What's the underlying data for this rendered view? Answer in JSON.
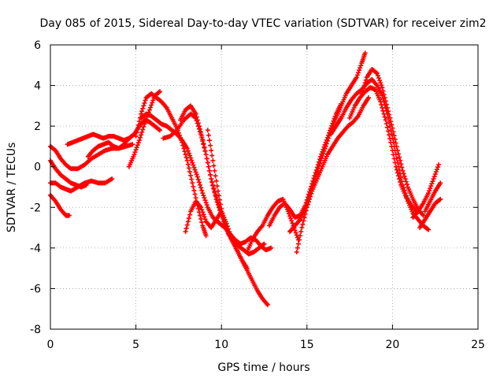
{
  "chart_data": {
    "type": "scatter",
    "title": "Day 085 of 2015, Sidereal Day-to-day VTEC variation (SDTVAR) for receiver zim2",
    "xlabel": "GPS time / hours",
    "ylabel": "SDTVAR / TECUs",
    "xlim": [
      0,
      25
    ],
    "ylim": [
      -8,
      6
    ],
    "xticks": [
      0,
      5,
      10,
      15,
      20,
      25
    ],
    "yticks": [
      -8,
      -6,
      -4,
      -2,
      0,
      2,
      4,
      6
    ],
    "grid": true,
    "marker": "plus",
    "color": "#ff0000",
    "tracks": [
      {
        "x": [
          0.0,
          0.3,
          0.6,
          0.9,
          1.1
        ],
        "y": [
          -1.4,
          -1.7,
          -2.1,
          -2.4,
          -2.4
        ]
      },
      {
        "x": [
          0.0,
          0.3,
          0.6,
          0.9,
          1.2,
          1.6,
          2.0,
          2.4,
          2.8,
          3.2,
          3.6
        ],
        "y": [
          -0.8,
          -0.8,
          -1.0,
          -1.1,
          -1.2,
          -1.0,
          -0.8,
          -0.7,
          -0.8,
          -0.8,
          -0.6
        ]
      },
      {
        "x": [
          0.0,
          0.3,
          0.6,
          0.9,
          1.2,
          1.5,
          1.8,
          2.1
        ],
        "y": [
          0.3,
          -0.1,
          -0.4,
          -0.6,
          -0.8,
          -0.9,
          -1.0,
          -0.9
        ]
      },
      {
        "x": [
          0.0,
          0.3,
          0.6,
          0.9,
          1.2,
          1.6,
          2.0,
          2.4,
          2.8,
          3.2,
          3.6,
          4.0,
          4.4,
          4.8
        ],
        "y": [
          1.0,
          0.8,
          0.4,
          0.1,
          -0.1,
          -0.1,
          0.1,
          0.4,
          0.6,
          0.8,
          0.9,
          0.9,
          1.0,
          1.1
        ]
      },
      {
        "x": [
          1.0,
          1.3,
          1.6,
          1.9,
          2.2,
          2.5,
          2.8,
          3.1,
          3.4,
          3.7,
          4.0,
          4.3,
          4.6,
          4.9
        ],
        "y": [
          1.1,
          1.2,
          1.3,
          1.4,
          1.5,
          1.6,
          1.5,
          1.4,
          1.5,
          1.5,
          1.4,
          1.3,
          1.4,
          1.6
        ]
      },
      {
        "x": [
          2.2,
          2.5,
          2.8,
          3.1,
          3.4,
          3.7,
          4.0,
          4.3,
          4.6,
          4.9,
          5.2,
          5.5,
          5.8,
          6.1,
          6.4
        ],
        "y": [
          0.5,
          0.8,
          1.0,
          1.1,
          1.2,
          1.0,
          0.9,
          1.1,
          1.4,
          1.6,
          2.0,
          2.3,
          2.2,
          2.0,
          1.8
        ]
      },
      {
        "x": [
          4.6,
          4.9,
          5.2,
          5.5,
          5.8,
          6.1,
          6.4
        ],
        "y": [
          0.0,
          0.6,
          1.3,
          2.1,
          2.8,
          3.5,
          3.7
        ]
      },
      {
        "x": [
          5.0,
          5.3,
          5.6,
          5.9,
          6.2,
          6.5,
          6.8,
          7.1,
          7.4,
          7.7,
          8.0,
          8.3,
          8.6,
          8.9,
          9.1
        ],
        "y": [
          1.5,
          2.6,
          3.4,
          3.6,
          3.4,
          3.2,
          2.9,
          2.4,
          1.9,
          1.2,
          0.3,
          -0.8,
          -1.9,
          -2.9,
          -3.4
        ]
      },
      {
        "x": [
          5.3,
          5.6,
          5.9,
          6.2,
          6.5,
          6.8,
          7.1,
          7.4,
          7.7,
          8.0,
          8.3,
          8.6,
          8.9,
          9.2,
          9.5,
          9.8
        ],
        "y": [
          2.4,
          2.6,
          2.5,
          2.3,
          2.1,
          2.0,
          1.8,
          1.6,
          1.3,
          0.9,
          0.2,
          -0.5,
          -1.3,
          -2.0,
          -2.5,
          -2.7
        ]
      },
      {
        "x": [
          6.6,
          7.0,
          7.4,
          7.8,
          8.2,
          8.5,
          8.8,
          9.1,
          9.4,
          9.7,
          10.0
        ],
        "y": [
          1.4,
          1.5,
          1.8,
          2.3,
          2.6,
          2.4,
          1.6,
          0.6,
          -0.6,
          -1.6,
          -2.4
        ]
      },
      {
        "x": [
          7.6,
          7.9,
          8.2,
          8.5,
          8.8,
          9.1,
          9.4,
          9.7,
          10.0,
          10.3,
          10.6,
          10.9,
          11.2,
          11.5,
          11.8,
          12.1,
          12.4,
          12.7
        ],
        "y": [
          2.3,
          2.8,
          3.0,
          2.6,
          1.7,
          0.6,
          -0.6,
          -1.5,
          -2.3,
          -3.1,
          -3.6,
          -4.1,
          -4.6,
          -5.1,
          -5.6,
          -6.1,
          -6.5,
          -6.8
        ]
      },
      {
        "x": [
          7.9,
          8.2,
          8.5,
          8.8,
          9.1,
          9.4,
          9.7,
          10.0,
          10.3,
          10.6,
          10.9,
          11.2,
          11.5
        ],
        "y": [
          -3.2,
          -2.2,
          -1.7,
          -2.0,
          -2.7,
          -3.0,
          -2.6,
          -2.2,
          -2.8,
          -3.6,
          -4.1,
          -4.6,
          -5.0
        ]
      },
      {
        "x": [
          9.2,
          9.5,
          9.8,
          10.1,
          10.4,
          10.7,
          11.0,
          11.3,
          11.6,
          11.9,
          12.2,
          12.5
        ],
        "y": [
          1.8,
          0.3,
          -1.2,
          -2.5,
          -3.3,
          -3.7,
          -3.9,
          -4.1,
          -4.3,
          -4.2,
          -4.0,
          -3.8
        ]
      },
      {
        "x": [
          9.6,
          9.9,
          10.2,
          10.5,
          10.8,
          11.1,
          11.4,
          11.7,
          12.0,
          12.3,
          12.6,
          12.9
        ],
        "y": [
          -2.6,
          -2.8,
          -3.0,
          -3.3,
          -3.6,
          -3.8,
          -3.7,
          -3.5,
          -3.6,
          -3.9,
          -4.1,
          -4.0
        ]
      },
      {
        "x": [
          11.5,
          11.8,
          12.1,
          12.4,
          12.7,
          13.0,
          13.3,
          13.6,
          13.9,
          14.2,
          14.5
        ],
        "y": [
          -4.2,
          -3.6,
          -3.2,
          -2.9,
          -2.4,
          -2.0,
          -1.7,
          -1.6,
          -2.2,
          -2.9,
          -3.6
        ]
      },
      {
        "x": [
          12.8,
          13.1,
          13.4,
          13.7,
          14.0,
          14.3,
          14.6,
          14.9,
          15.2,
          15.5,
          15.8,
          16.1,
          16.4,
          16.7,
          17.0
        ],
        "y": [
          -2.9,
          -2.4,
          -2.0,
          -1.8,
          -2.1,
          -2.5,
          -2.4,
          -1.9,
          -1.1,
          -0.3,
          0.5,
          1.2,
          1.9,
          2.6,
          3.1
        ]
      },
      {
        "x": [
          14.0,
          14.3,
          14.6,
          14.9,
          15.2,
          15.5,
          15.8,
          16.1,
          16.4,
          16.7,
          17.0,
          17.3,
          17.6,
          17.9,
          18.2,
          18.4
        ],
        "y": [
          -3.2,
          -2.9,
          -2.6,
          -2.1,
          -1.3,
          -0.5,
          0.3,
          1.0,
          1.8,
          2.4,
          3.0,
          3.6,
          4.0,
          4.4,
          5.1,
          5.6
        ]
      },
      {
        "x": [
          14.4,
          14.7,
          15.0,
          15.3,
          15.6,
          15.9,
          16.2,
          16.5,
          16.8,
          17.1,
          17.4,
          17.7,
          18.0,
          18.3,
          18.6
        ],
        "y": [
          -4.2,
          -3.0,
          -2.0,
          -1.2,
          -0.6,
          0.0,
          0.6,
          1.0,
          1.4,
          1.7,
          2.0,
          2.2,
          2.5,
          3.0,
          3.4
        ]
      },
      {
        "x": [
          16.4,
          16.7,
          17.0,
          17.3,
          17.6,
          17.9,
          18.2,
          18.5,
          18.8,
          19.1,
          19.4,
          19.7,
          20.0,
          20.3,
          20.6,
          20.9,
          21.2,
          21.5,
          21.8,
          22.1
        ],
        "y": [
          1.6,
          2.0,
          2.4,
          2.9,
          3.3,
          3.6,
          3.8,
          4.1,
          4.3,
          4.0,
          3.5,
          2.6,
          1.4,
          0.2,
          -0.9,
          -1.7,
          -2.3,
          -2.6,
          -2.9,
          -3.1
        ]
      },
      {
        "x": [
          17.5,
          17.8,
          18.1,
          18.4,
          18.7,
          19.0,
          19.3,
          19.6,
          19.9,
          20.2,
          20.5,
          20.8,
          21.1,
          21.4
        ],
        "y": [
          2.4,
          3.0,
          3.4,
          3.7,
          3.9,
          3.8,
          3.2,
          2.3,
          1.2,
          0.0,
          -0.9,
          -1.5,
          -1.9,
          -2.2
        ]
      },
      {
        "x": [
          18.2,
          18.5,
          18.8,
          19.1,
          19.4,
          19.7,
          20.0,
          20.3,
          20.6,
          20.9,
          21.2,
          21.5,
          21.8
        ],
        "y": [
          3.6,
          4.4,
          4.8,
          4.6,
          3.9,
          2.9,
          1.9,
          0.8,
          -0.2,
          -1.0,
          -1.6,
          -2.1,
          -2.4
        ]
      },
      {
        "x": [
          21.2,
          21.5,
          21.8,
          22.1,
          22.4,
          22.7
        ],
        "y": [
          -2.5,
          -2.2,
          -1.8,
          -1.3,
          -0.6,
          0.1
        ]
      },
      {
        "x": [
          21.6,
          21.9,
          22.2,
          22.5,
          22.8
        ],
        "y": [
          -3.0,
          -2.6,
          -2.2,
          -1.8,
          -1.6
        ]
      },
      {
        "x": [
          21.9,
          22.2,
          22.5,
          22.8
        ],
        "y": [
          -2.2,
          -1.7,
          -1.2,
          -0.8
        ]
      }
    ]
  }
}
